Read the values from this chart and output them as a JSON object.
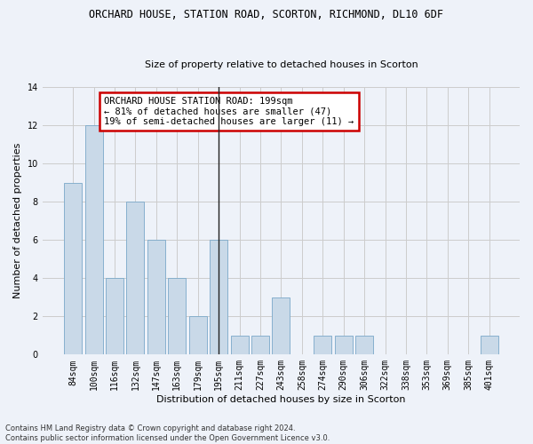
{
  "title": "ORCHARD HOUSE, STATION ROAD, SCORTON, RICHMOND, DL10 6DF",
  "subtitle": "Size of property relative to detached houses in Scorton",
  "xlabel": "Distribution of detached houses by size in Scorton",
  "ylabel": "Number of detached properties",
  "categories": [
    "84sqm",
    "100sqm",
    "116sqm",
    "132sqm",
    "147sqm",
    "163sqm",
    "179sqm",
    "195sqm",
    "211sqm",
    "227sqm",
    "243sqm",
    "258sqm",
    "274sqm",
    "290sqm",
    "306sqm",
    "322sqm",
    "338sqm",
    "353sqm",
    "369sqm",
    "385sqm",
    "401sqm"
  ],
  "values": [
    9,
    12,
    4,
    8,
    6,
    4,
    2,
    6,
    1,
    1,
    3,
    0,
    1,
    1,
    1,
    0,
    0,
    0,
    0,
    0,
    1
  ],
  "bar_color": "#c9d9e8",
  "bar_edge_color": "#7aa8c9",
  "highlight_index": 7,
  "highlight_line_color": "#222222",
  "annotation_text": "ORCHARD HOUSE STATION ROAD: 199sqm\n← 81% of detached houses are smaller (47)\n19% of semi-detached houses are larger (11) →",
  "annotation_box_color": "#ffffff",
  "annotation_box_edge_color": "#cc0000",
  "ylim": [
    0,
    14
  ],
  "yticks": [
    0,
    2,
    4,
    6,
    8,
    10,
    12,
    14
  ],
  "grid_color": "#cccccc",
  "background_color": "#eef2f9",
  "footnote": "Contains HM Land Registry data © Crown copyright and database right 2024.\nContains public sector information licensed under the Open Government Licence v3.0.",
  "title_fontsize": 8.5,
  "subtitle_fontsize": 8.0,
  "axis_label_fontsize": 8.0,
  "tick_fontsize": 7.0,
  "annotation_fontsize": 7.5,
  "footnote_fontsize": 6.0
}
